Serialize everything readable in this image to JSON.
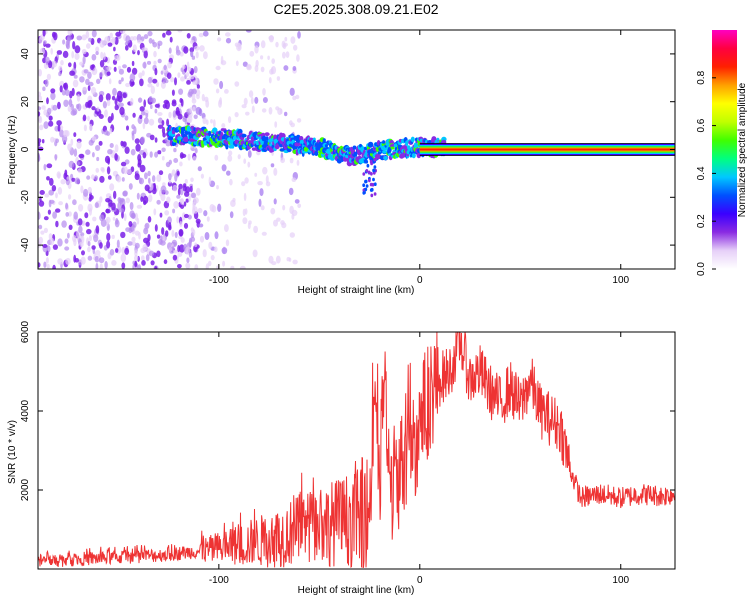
{
  "title": "C2E5.2025.308.09.21.E02",
  "chart_data": [
    {
      "type": "heatmap",
      "name": "spectrogram",
      "xlabel": "Height of straight line (km)",
      "ylabel": "Frequency (Hz)",
      "xlim": [
        -190,
        127
      ],
      "ylim": [
        -50,
        50
      ],
      "xticks": [
        "-100",
        "0",
        "100"
      ],
      "yticks": [
        "-40",
        "-20",
        "0",
        "20",
        "40"
      ],
      "xtick_values": [
        -100,
        0,
        100
      ],
      "ytick_values": [
        -40,
        -20,
        0,
        20,
        40
      ],
      "colorbar": {
        "label": "Normalized spectral amplitude",
        "range": [
          0,
          1
        ],
        "ticks": [
          "0.0",
          "0.2",
          "0.4",
          "0.6",
          "0.8"
        ],
        "tick_values": [
          0.0,
          0.2,
          0.4,
          0.6,
          0.8
        ],
        "colors": [
          "#ffffff",
          "#e6d0f8",
          "#8a2be2",
          "#3a00ff",
          "#0050ff",
          "#00c8ff",
          "#00ff80",
          "#40ff00",
          "#c0ff00",
          "#ffff00",
          "#ffa000",
          "#ff2000",
          "#ff0040",
          "#ff00c0"
        ]
      },
      "features": [
        {
          "name": "noise",
          "x_range": [
            -190,
            -110
          ],
          "freq_range": [
            -50,
            50
          ],
          "amplitude": 0.1
        },
        {
          "name": "sparse-noise",
          "x_range": [
            -115,
            -60
          ],
          "freq_range": [
            -50,
            50
          ],
          "amplitude": 0.05
        },
        {
          "name": "signal-ramp",
          "x": [
            -125,
            -100,
            -75,
            -50,
            -35,
            -25,
            -15,
            0,
            12
          ],
          "freq": [
            6,
            5,
            3,
            1,
            -3,
            -1,
            0,
            1,
            1
          ],
          "amplitude": 0.45
        },
        {
          "name": "steady-line",
          "x_range": [
            0,
            127
          ],
          "freq": 0,
          "amplitude": 1.0
        }
      ]
    },
    {
      "type": "line",
      "name": "snr",
      "xlabel": "Height of straight line (km)",
      "ylabel": "SNR (10 * v/v)",
      "xlim": [
        -190,
        127
      ],
      "ylim": [
        0,
        6000
      ],
      "xticks": [
        "-100",
        "0",
        "100"
      ],
      "yticks": [
        "2000",
        "4000",
        "6000"
      ],
      "xtick_values": [
        -100,
        0,
        100
      ],
      "ytick_values": [
        2000,
        4000,
        6000
      ],
      "color": "#ee3333",
      "series": [
        {
          "name": "SNR",
          "x": [
            -190,
            -170,
            -150,
            -130,
            -110,
            -90,
            -70,
            -60,
            -50,
            -40,
            -30,
            -25,
            -22,
            -20,
            -18,
            -15,
            -10,
            -5,
            0,
            5,
            10,
            15,
            20,
            25,
            30,
            35,
            40,
            45,
            50,
            55,
            60,
            65,
            70,
            75,
            80,
            90,
            100,
            110,
            120,
            127
          ],
          "y": [
            200,
            250,
            300,
            350,
            450,
            600,
            800,
            1000,
            1100,
            1200,
            1300,
            1500,
            5000,
            1600,
            5000,
            2000,
            2500,
            3000,
            3500,
            4500,
            4800,
            5000,
            5800,
            4800,
            5000,
            4500,
            4200,
            4600,
            4100,
            4800,
            4000,
            3800,
            3600,
            2500,
            1800,
            1900,
            1800,
            1900,
            1850,
            1900
          ]
        }
      ]
    }
  ]
}
